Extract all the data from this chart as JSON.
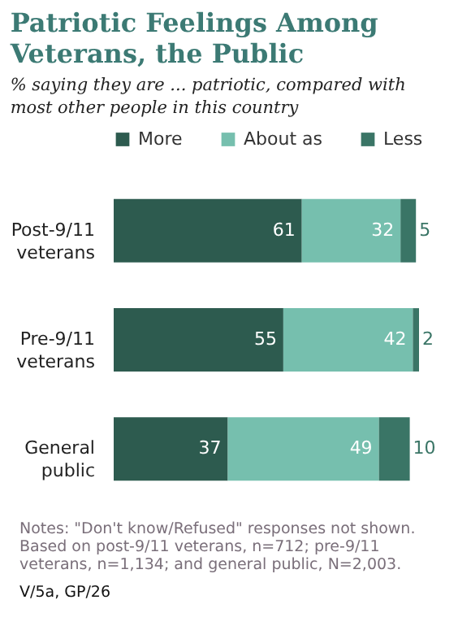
{
  "chart_data": {
    "type": "bar",
    "orientation": "horizontal",
    "stacked": true,
    "data_labels": true,
    "legend": "top",
    "grid": false,
    "title": "Patriotic Feelings Among Veterans, the Public",
    "subtitle": "% saying they are ... patriotic, compared with most other people in this country",
    "categories": [
      "Post-9/11 veterans",
      "Pre-9/11 veterans",
      "General public"
    ],
    "series": [
      {
        "name": "More",
        "color": "#2d5b4f",
        "values": [
          61,
          55,
          37
        ]
      },
      {
        "name": "About as",
        "color": "#76bfae",
        "values": [
          32,
          42,
          49
        ]
      },
      {
        "name": "Less",
        "color": "#3a7566",
        "values": [
          5,
          2,
          10
        ]
      }
    ],
    "annotations": [
      "Notes: \"Don't know/Refused\" responses not shown. Based on post-9/11 veterans, n=712; pre-9/11 veterans, n=1,134; and general public, N=2,003.",
      "V/5a, GP/26"
    ]
  }
}
